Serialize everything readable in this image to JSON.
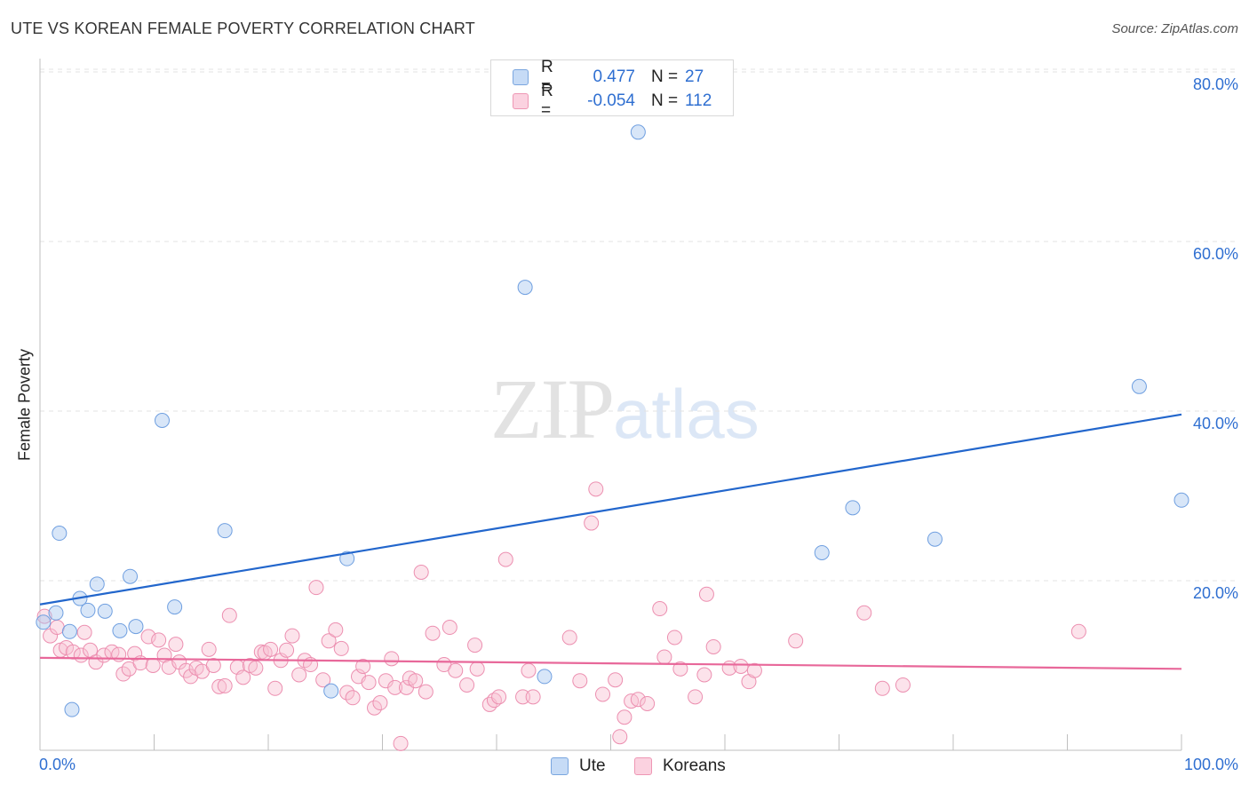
{
  "header": {
    "title": "UTE VS KOREAN FEMALE POVERTY CORRELATION CHART",
    "source": "Source: ZipAtlas.com"
  },
  "watermark": {
    "zip": "ZIP",
    "atlas": "atlas"
  },
  "legend": {
    "rows": [
      {
        "r_label": "R =",
        "r_value": "0.477",
        "n_label": "N =",
        "n_value": "27",
        "color": "#a9c8ef",
        "border": "#7aa6df"
      },
      {
        "r_label": "R =",
        "r_value": "-0.054",
        "n_label": "N =",
        "n_value": "112",
        "color": "#f8c0d2",
        "border": "#ee97b4"
      }
    ],
    "bottom": [
      {
        "label": "Ute",
        "color": "#a9c8ef",
        "border": "#7aa6df"
      },
      {
        "label": "Koreans",
        "color": "#f8c0d2",
        "border": "#ee97b4"
      }
    ]
  },
  "chart_data": {
    "type": "scatter",
    "title": "UTE VS KOREAN FEMALE POVERTY CORRELATION CHART",
    "xlabel": "",
    "ylabel": "Female Poverty",
    "xlim": [
      0,
      100
    ],
    "ylim": [
      0,
      83
    ],
    "x_tick_labels": [
      "0.0%",
      "100.0%"
    ],
    "y_ticks": [
      20,
      40,
      60,
      80
    ],
    "y_tick_labels": [
      "20.0%",
      "40.0%",
      "60.0%",
      "80.0%"
    ],
    "grid": true,
    "colors": {
      "ute": "#6f9fe0",
      "ute_line": "#2266cc",
      "koreans": "#ec8fb0",
      "koreans_line": "#e8689a",
      "axis_label": "#2f6fd1"
    },
    "series": [
      {
        "name": "Ute",
        "trend": {
          "x": [
            0,
            100
          ],
          "y": [
            17.2,
            39.6
          ]
        },
        "points": [
          [
            0.3,
            15.1
          ],
          [
            1.4,
            16.2
          ],
          [
            1.7,
            25.6
          ],
          [
            2.6,
            14.0
          ],
          [
            2.8,
            4.8
          ],
          [
            3.5,
            17.9
          ],
          [
            4.2,
            16.5
          ],
          [
            5.0,
            19.6
          ],
          [
            5.7,
            16.4
          ],
          [
            7.0,
            14.1
          ],
          [
            7.9,
            20.5
          ],
          [
            8.4,
            14.6
          ],
          [
            10.7,
            38.9
          ],
          [
            11.8,
            16.9
          ],
          [
            16.2,
            25.9
          ],
          [
            26.9,
            22.6
          ],
          [
            25.5,
            7.0
          ],
          [
            42.5,
            54.6
          ],
          [
            44.2,
            8.7
          ],
          [
            52.4,
            72.9
          ],
          [
            68.5,
            23.3
          ],
          [
            71.2,
            28.6
          ],
          [
            78.4,
            24.9
          ],
          [
            96.3,
            42.9
          ],
          [
            100.0,
            29.5
          ]
        ]
      },
      {
        "name": "Koreans",
        "trend": {
          "x": [
            0,
            100
          ],
          "y": [
            10.9,
            9.6
          ]
        },
        "points": [
          [
            0.4,
            15.8
          ],
          [
            0.9,
            13.5
          ],
          [
            1.5,
            14.5
          ],
          [
            1.8,
            11.8
          ],
          [
            2.3,
            12.1
          ],
          [
            2.9,
            11.6
          ],
          [
            3.6,
            11.2
          ],
          [
            3.9,
            13.9
          ],
          [
            4.4,
            11.8
          ],
          [
            4.9,
            10.4
          ],
          [
            5.6,
            11.2
          ],
          [
            6.3,
            11.6
          ],
          [
            6.9,
            11.3
          ],
          [
            7.3,
            9.0
          ],
          [
            7.8,
            9.6
          ],
          [
            8.3,
            11.4
          ],
          [
            8.8,
            10.3
          ],
          [
            9.5,
            13.4
          ],
          [
            9.9,
            10.0
          ],
          [
            10.4,
            13.0
          ],
          [
            10.9,
            11.2
          ],
          [
            11.3,
            9.8
          ],
          [
            11.9,
            12.5
          ],
          [
            12.2,
            10.4
          ],
          [
            12.8,
            9.4
          ],
          [
            13.2,
            8.7
          ],
          [
            13.7,
            9.7
          ],
          [
            14.2,
            9.3
          ],
          [
            14.8,
            11.9
          ],
          [
            15.2,
            10.0
          ],
          [
            15.7,
            7.5
          ],
          [
            16.2,
            7.6
          ],
          [
            16.6,
            15.9
          ],
          [
            17.3,
            9.8
          ],
          [
            17.8,
            8.6
          ],
          [
            18.4,
            10.0
          ],
          [
            18.9,
            9.7
          ],
          [
            19.4,
            11.6
          ],
          [
            19.7,
            11.5
          ],
          [
            20.2,
            11.9
          ],
          [
            20.6,
            7.3
          ],
          [
            21.1,
            10.6
          ],
          [
            21.6,
            11.8
          ],
          [
            22.1,
            13.5
          ],
          [
            22.7,
            8.9
          ],
          [
            23.2,
            10.6
          ],
          [
            23.7,
            10.1
          ],
          [
            24.2,
            19.2
          ],
          [
            24.8,
            8.3
          ],
          [
            25.3,
            12.9
          ],
          [
            25.9,
            14.2
          ],
          [
            26.4,
            12.0
          ],
          [
            26.9,
            6.8
          ],
          [
            27.4,
            6.2
          ],
          [
            27.9,
            8.7
          ],
          [
            28.3,
            9.9
          ],
          [
            28.8,
            8.0
          ],
          [
            29.3,
            5.0
          ],
          [
            29.8,
            5.6
          ],
          [
            30.3,
            8.2
          ],
          [
            30.8,
            10.8
          ],
          [
            31.1,
            7.4
          ],
          [
            31.6,
            0.8
          ],
          [
            32.1,
            7.4
          ],
          [
            32.4,
            8.5
          ],
          [
            32.9,
            8.2
          ],
          [
            33.4,
            21.0
          ],
          [
            33.8,
            6.9
          ],
          [
            34.4,
            13.8
          ],
          [
            35.4,
            10.1
          ],
          [
            35.9,
            14.5
          ],
          [
            36.4,
            9.4
          ],
          [
            37.4,
            7.7
          ],
          [
            38.1,
            12.4
          ],
          [
            38.3,
            9.6
          ],
          [
            39.4,
            5.4
          ],
          [
            39.8,
            5.9
          ],
          [
            40.2,
            6.3
          ],
          [
            40.8,
            22.5
          ],
          [
            42.3,
            6.3
          ],
          [
            42.8,
            9.4
          ],
          [
            43.2,
            6.3
          ],
          [
            46.4,
            13.3
          ],
          [
            47.3,
            8.2
          ],
          [
            48.3,
            26.8
          ],
          [
            48.7,
            30.8
          ],
          [
            49.3,
            6.6
          ],
          [
            50.4,
            8.3
          ],
          [
            50.8,
            1.6
          ],
          [
            51.2,
            3.9
          ],
          [
            51.8,
            5.8
          ],
          [
            52.4,
            6.0
          ],
          [
            53.2,
            5.5
          ],
          [
            54.3,
            16.7
          ],
          [
            54.7,
            11.0
          ],
          [
            55.6,
            13.3
          ],
          [
            56.1,
            9.6
          ],
          [
            57.4,
            6.3
          ],
          [
            58.2,
            8.9
          ],
          [
            58.4,
            18.4
          ],
          [
            59.0,
            12.2
          ],
          [
            60.4,
            9.7
          ],
          [
            61.4,
            9.9
          ],
          [
            62.1,
            8.1
          ],
          [
            62.6,
            9.4
          ],
          [
            66.2,
            12.9
          ],
          [
            72.2,
            16.2
          ],
          [
            73.8,
            7.3
          ],
          [
            75.6,
            7.7
          ],
          [
            91.0,
            14.0
          ]
        ]
      }
    ]
  }
}
